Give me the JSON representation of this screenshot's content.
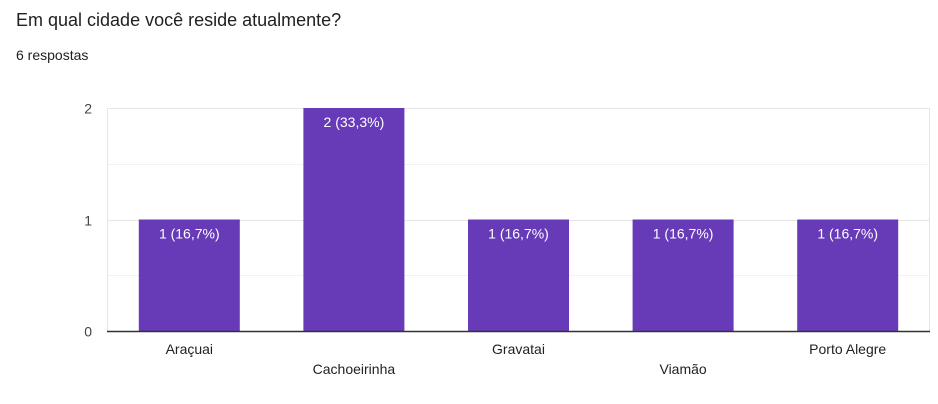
{
  "question": {
    "title": "Em qual cidade você reside atualmente?",
    "responses": "6 respostas"
  },
  "colors": {
    "bar": "#673ab7",
    "grid": "#e6e6e6",
    "axis": "#333333"
  },
  "chart_data": {
    "type": "bar",
    "categories": [
      "Araçuai",
      "Cachoeirinha",
      "Gravatai",
      "Viamão",
      "Porto Alegre"
    ],
    "values": [
      1,
      2,
      1,
      1,
      1
    ],
    "data_labels": [
      "1 (16,7%)",
      "2 (33,3%)",
      "1 (16,7%)",
      "1 (16,7%)",
      "1 (16,7%)"
    ],
    "y_ticks": [
      0,
      1,
      2
    ],
    "ylim": [
      0,
      2
    ],
    "grid": true,
    "legend": "none"
  }
}
